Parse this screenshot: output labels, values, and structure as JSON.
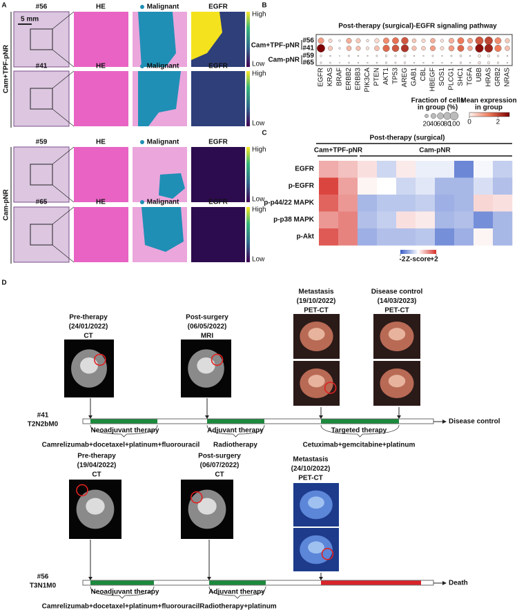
{
  "panel_a": {
    "letter": "A",
    "scale_bar": "5 mm",
    "groups": [
      "Cam+TPF-pNR",
      "Cam-pNR"
    ],
    "rows": [
      {
        "sample": "#56",
        "he": "HE",
        "malignant": "Malignant",
        "egfr": "EGFR",
        "high": "High",
        "low": "Low"
      },
      {
        "sample": "#41",
        "he": "HE",
        "malignant": "Malignant",
        "egfr": "EGFR",
        "high": "High",
        "low": "Low"
      },
      {
        "sample": "#59",
        "he": "HE",
        "malignant": "Malignant",
        "egfr": "EGFR",
        "high": "High",
        "low": "Low"
      },
      {
        "sample": "#65",
        "he": "HE",
        "malignant": "Malignant",
        "egfr": "EGFR",
        "high": "High",
        "low": "Low"
      }
    ]
  },
  "dot_plot": {
    "letter": "B",
    "title": "Post-therapy (surgical)-EGFR signaling pathway",
    "groups": [
      "Cam+TPF-pNR",
      "Cam-pNR"
    ],
    "genes": [
      "EGFR",
      "KRAS",
      "BRAF",
      "ERBB2",
      "ERBB3",
      "PIK3CA",
      "PTEN",
      "AKT1",
      "TP53",
      "AREG",
      "GAB1",
      "CBL",
      "HBEGF",
      "SOS1",
      "PLCG1",
      "SHC1",
      "TGFA",
      "UBB",
      "HRAS",
      "GRB2",
      "NRAS"
    ],
    "rows": [
      {
        "label": "#56",
        "fraction": [
          50,
          20,
          5,
          40,
          30,
          10,
          30,
          50,
          60,
          70,
          25,
          20,
          35,
          15,
          40,
          60,
          40,
          90,
          90,
          60,
          30
        ],
        "expression": [
          1.0,
          0.3,
          0,
          0.8,
          0.5,
          0.1,
          0.3,
          1.2,
          1.5,
          1.8,
          0.5,
          0.3,
          0.8,
          0.2,
          0.8,
          1.4,
          1.0,
          1.8,
          2.0,
          1.2,
          0.5
        ]
      },
      {
        "label": "#41",
        "fraction": [
          90,
          30,
          5,
          35,
          30,
          15,
          35,
          65,
          70,
          80,
          30,
          25,
          40,
          20,
          45,
          60,
          35,
          95,
          95,
          65,
          35
        ],
        "expression": [
          2.8,
          0.5,
          0.1,
          0.7,
          0.6,
          0.2,
          0.6,
          1.6,
          1.8,
          2.2,
          0.6,
          0.4,
          1.0,
          0.3,
          1.0,
          1.6,
          0.9,
          2.6,
          2.4,
          1.4,
          0.6
        ]
      },
      {
        "label": "#59",
        "fraction": [
          5,
          3,
          1,
          4,
          3,
          2,
          4,
          6,
          5,
          8,
          3,
          2,
          4,
          2,
          4,
          6,
          3,
          12,
          10,
          6,
          3
        ],
        "expression": [
          0,
          0,
          0,
          0,
          0,
          0,
          0,
          0,
          0,
          0,
          0,
          0,
          0,
          0,
          0,
          0,
          0,
          0.1,
          0,
          0,
          0
        ]
      },
      {
        "label": "#65",
        "fraction": [
          4,
          3,
          1,
          3,
          2,
          2,
          3,
          5,
          4,
          6,
          2,
          2,
          3,
          2,
          3,
          5,
          2,
          10,
          8,
          5,
          2
        ],
        "expression": [
          0,
          0,
          0,
          0,
          0,
          0,
          0,
          0,
          0,
          0,
          0,
          0,
          0,
          0,
          0,
          0,
          0,
          0.1,
          0,
          0,
          0
        ]
      }
    ],
    "size_legend": {
      "title": [
        "Fraction of cells",
        "in group (%)"
      ],
      "ticks": [
        20,
        40,
        60,
        80,
        100
      ]
    },
    "color_legend": {
      "title": [
        "Mean expression",
        "in group"
      ],
      "lim": [
        0,
        2.8
      ],
      "ticks": [
        0,
        2
      ]
    }
  },
  "heatmap": {
    "letter": "C",
    "title": "Post-therapy (surgical)",
    "groups": [
      "Cam+TPF-pNR",
      "Cam-pNR"
    ],
    "rows": [
      "EGFR",
      "p-EGFR",
      "p-p44/22 MAPK",
      "p-p38 MAPK",
      "p-Akt"
    ],
    "values": [
      [
        0.8,
        0.6,
        0.3,
        -0.5,
        0.2,
        -0.2,
        -0.2,
        -1.5,
        -0.1,
        -0.6
      ],
      [
        1.8,
        0.9,
        0.1,
        0.0,
        -0.5,
        -0.3,
        -0.9,
        -0.9,
        -0.4,
        -0.8
      ],
      [
        1.5,
        1.0,
        -0.9,
        -0.7,
        -0.7,
        -0.6,
        -1.0,
        -0.9,
        0.4,
        0.3
      ],
      [
        1.0,
        1.2,
        -0.8,
        -0.6,
        0.3,
        0.2,
        -0.9,
        -0.8,
        -1.4,
        -0.9
      ],
      [
        1.6,
        1.2,
        -1.0,
        -0.8,
        -0.8,
        -0.7,
        -1.4,
        -1.0,
        0.1,
        -0.9
      ]
    ],
    "colorbar": {
      "lim": [
        -2,
        2
      ],
      "label": "Z-score",
      "ticks": [
        -2,
        {
          "value": 2,
          "label": "+2"
        }
      ]
    }
  },
  "panel_d": {
    "letter": "D",
    "timelines": [
      {
        "patient": "#41",
        "stage": "T2N2bM0",
        "outcome": "Disease control",
        "events": [
          {
            "label": "Pre-therapy",
            "date": "(24/01/2022)",
            "modality": "CT"
          },
          {
            "label": "Post-surgery",
            "date": "(06/05/2022)",
            "modality": "MRI"
          },
          {
            "label": "Metastasis",
            "date": "(19/10/2022)",
            "modality": "PET-CT"
          },
          {
            "label": "Disease control",
            "date": "(14/03/2023)",
            "modality": "PET-CT"
          }
        ],
        "therapies": [
          "Neoadjuvant therapy",
          "Adjuvant therapy",
          "Targeted therapy"
        ],
        "regimens": [
          "Camrelizumab+docetaxel+platinum+fluorouracil",
          "Radiotherapy",
          "Cetuximab+gemcitabine+platinum"
        ]
      },
      {
        "patient": "#56",
        "stage": "T3N1M0",
        "outcome": "Death",
        "events": [
          {
            "label": "Pre-therapy",
            "date": "(19/04/2022)",
            "modality": "CT"
          },
          {
            "label": "Post-surgery",
            "date": "(06/07/2022)",
            "modality": "CT"
          },
          {
            "label": "Metastasis",
            "date": "(24/10/2022)",
            "modality": "PET-CT"
          }
        ],
        "therapies": [
          "Neoadjuvant therapy",
          "Adjuvant therapy"
        ],
        "regimens": [
          "Camrelizumab+docetaxel+platinum+fluorouracil",
          "Radiotherapy+platinum"
        ]
      }
    ]
  }
}
